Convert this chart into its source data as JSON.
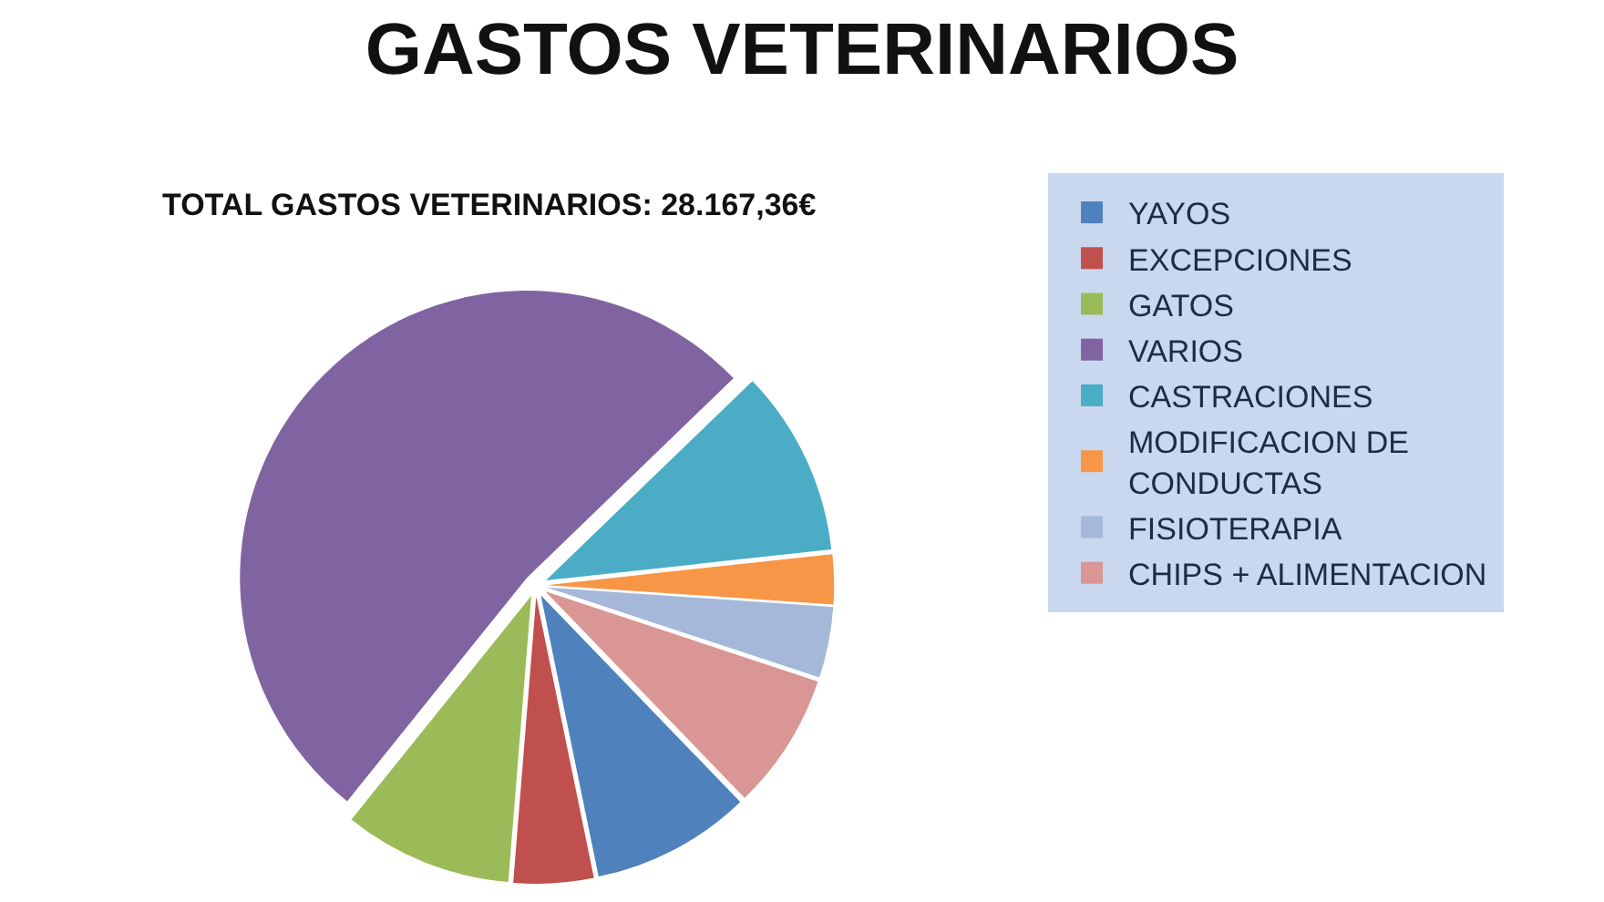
{
  "chart_data": {
    "type": "pie",
    "title": "GASTOS VETERINARIOS",
    "subtitle": "TOTAL GASTOS VETERINARIOS: 28.167,36€",
    "categories": [
      "YAYOS",
      "EXCEPCIONES",
      "GATOS",
      "VARIOS",
      "CASTRACIONES",
      "MODIFICACION DE CONDUCTAS",
      "FISIOTERAPIA",
      "CHIPS + ALIMENTACION"
    ],
    "values": [
      9,
      4.5,
      9.5,
      52,
      10.5,
      2.8,
      4,
      7.7
    ],
    "colors": [
      "#4f81bd",
      "#c0504d",
      "#9bbb59",
      "#8064a2",
      "#4bacc6",
      "#f79646",
      "#a5b8da",
      "#d99694"
    ],
    "legend": "right"
  }
}
